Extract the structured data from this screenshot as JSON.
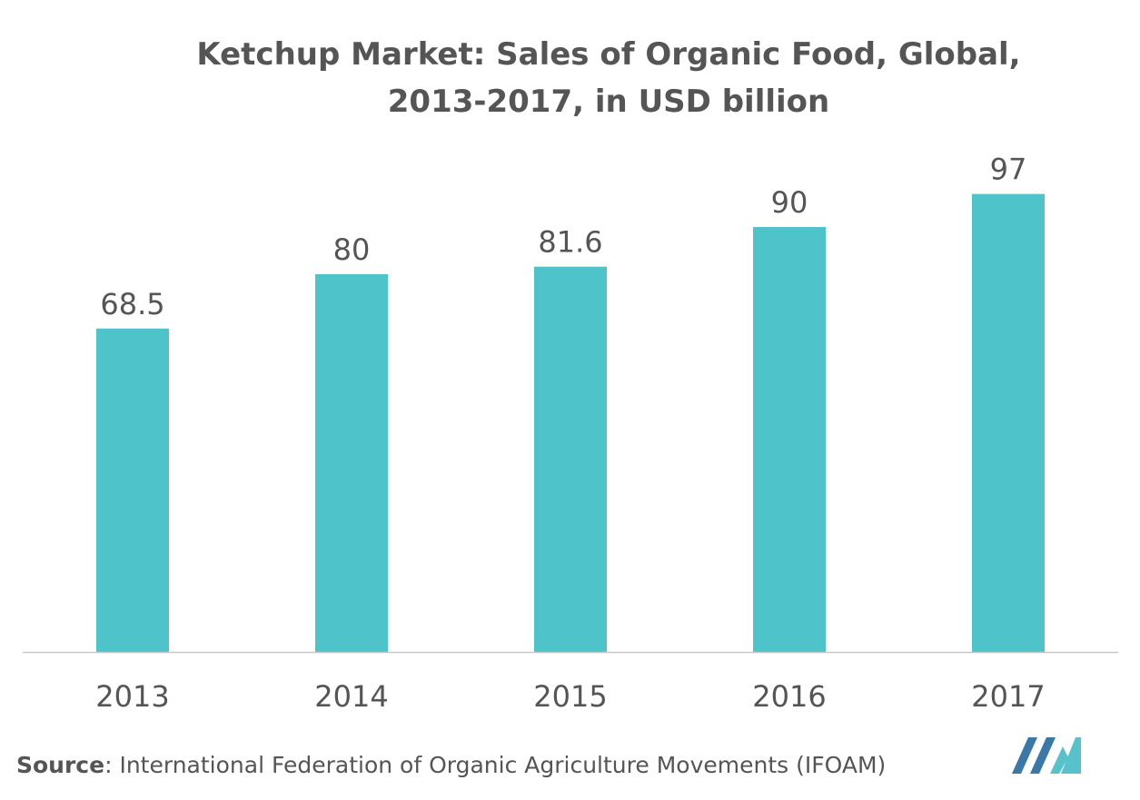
{
  "header": {
    "title_line1": "Ketchup Market: Sales of Organic Food, Global,",
    "title_line2": "2013-2017, in USD billion"
  },
  "footer": {
    "source_label": "Source",
    "source_text": ": International Federation of Organic Agriculture Movements (IFOAM)"
  },
  "colors": {
    "bar": "#4fc3ca",
    "text": "#555555",
    "axis": "#c8c8c8",
    "logo_dark": "#3a78a8",
    "logo_light": "#57c2cc"
  },
  "chart_data": {
    "type": "bar",
    "categories": [
      "2013",
      "2014",
      "2015",
      "2016",
      "2017"
    ],
    "values": [
      68.5,
      80,
      81.6,
      90,
      97
    ],
    "data_labels": [
      "68.5",
      "80",
      "81.6",
      "90",
      "97"
    ],
    "title": "Ketchup Market: Sales of Organic Food, Global, 2013-2017, in USD billion",
    "xlabel": "",
    "ylabel": "",
    "ylim": [
      0,
      110
    ],
    "grid": false,
    "legend": "none"
  }
}
